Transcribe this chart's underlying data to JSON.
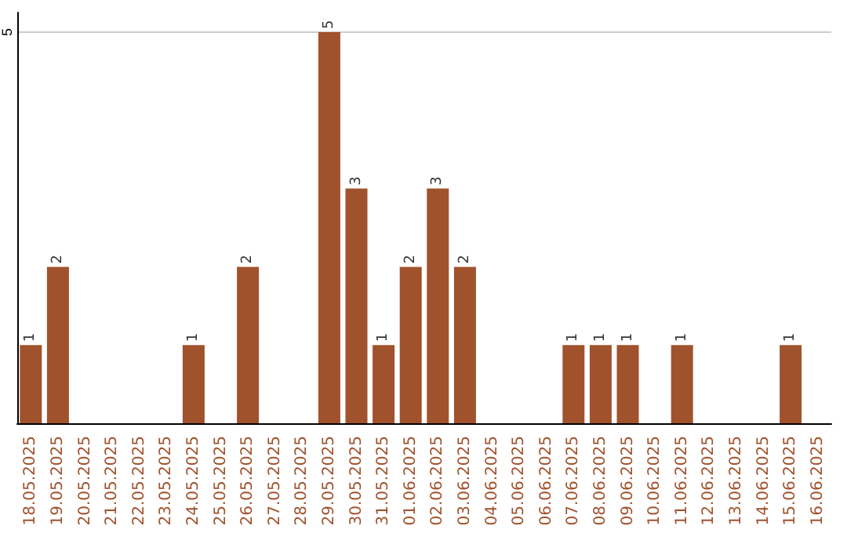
{
  "chart_data": {
    "type": "bar",
    "categories": [
      "18.05.2025",
      "19.05.2025",
      "20.05.2025",
      "21.05.2025",
      "22.05.2025",
      "23.05.2025",
      "24.05.2025",
      "25.05.2025",
      "26.05.2025",
      "27.05.2025",
      "28.05.2025",
      "29.05.2025",
      "30.05.2025",
      "31.05.2025",
      "01.06.2025",
      "02.06.2025",
      "03.06.2025",
      "04.06.2025",
      "05.06.2025",
      "06.06.2025",
      "07.06.2025",
      "08.06.2025",
      "09.06.2025",
      "10.06.2025",
      "11.06.2025",
      "12.06.2025",
      "13.06.2025",
      "14.06.2025",
      "15.06.2025",
      "16.06.2025"
    ],
    "values": [
      1,
      2,
      0,
      0,
      0,
      0,
      1,
      0,
      2,
      0,
      0,
      5,
      3,
      1,
      2,
      3,
      2,
      0,
      0,
      0,
      1,
      1,
      1,
      0,
      1,
      0,
      0,
      0,
      1,
      0
    ],
    "value_labels": [
      "1",
      "2",
      null,
      null,
      null,
      null,
      "1",
      null,
      "2",
      null,
      null,
      "5",
      "3",
      "1",
      "2",
      "3",
      "2",
      null,
      null,
      null,
      "1",
      "1",
      "1",
      null,
      "1",
      null,
      null,
      null,
      "1",
      null
    ],
    "color": "#a0522d",
    "ylim": [
      0,
      5.25
    ],
    "yticks": [
      5
    ],
    "grid": "y"
  }
}
